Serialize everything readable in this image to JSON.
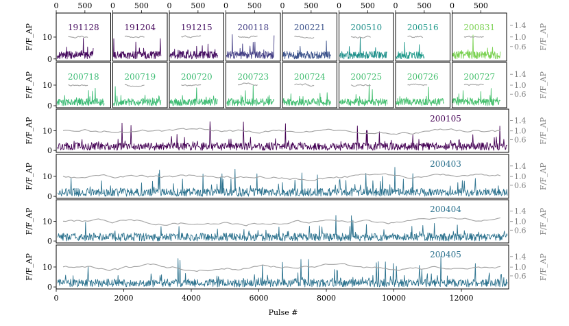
{
  "chart_data": {
    "type": "line",
    "x_axis": {
      "label": "Pulse #",
      "ticks": [
        0,
        2000,
        4000,
        6000,
        8000,
        10000,
        12000
      ],
      "range": [
        0,
        13400
      ]
    },
    "top_axis": {
      "ticks": [
        0,
        500
      ],
      "range": [
        0,
        950
      ]
    },
    "left_axis": {
      "label": "F/F_AP",
      "ticks": [
        0,
        10
      ],
      "range": [
        -1,
        21
      ]
    },
    "right_axis": {
      "label": "F/F_AP",
      "ticks": [
        "1.4",
        "1.0",
        "0.6"
      ],
      "color": "#808080"
    },
    "small_panels": [
      {
        "date": "191128",
        "row": 0,
        "n_pulses": 650,
        "color": "#450a5e"
      },
      {
        "date": "191204",
        "row": 0,
        "n_pulses": 850,
        "color": "#46085c"
      },
      {
        "date": "191215",
        "row": 0,
        "n_pulses": 850,
        "color": "#471164"
      },
      {
        "date": "200118",
        "row": 0,
        "n_pulses": 850,
        "color": "#433e85"
      },
      {
        "date": "200221",
        "row": 0,
        "n_pulses": 850,
        "color": "#3b528b"
      },
      {
        "date": "200510",
        "row": 0,
        "n_pulses": 850,
        "color": "#21918c"
      },
      {
        "date": "200516",
        "row": 0,
        "n_pulses": 500,
        "color": "#1f9a8a"
      },
      {
        "date": "200831",
        "row": 0,
        "n_pulses": 850,
        "color": "#7ad151"
      },
      {
        "date": "200718",
        "row": 1,
        "n_pulses": 850,
        "color": "#3bbb75"
      },
      {
        "date": "200719",
        "row": 1,
        "n_pulses": 850,
        "color": "#3dbc74"
      },
      {
        "date": "200720",
        "row": 1,
        "n_pulses": 850,
        "color": "#3ebc73"
      },
      {
        "date": "200723",
        "row": 1,
        "n_pulses": 850,
        "color": "#40bd72"
      },
      {
        "date": "200724",
        "row": 1,
        "n_pulses": 850,
        "color": "#42be71"
      },
      {
        "date": "200725",
        "row": 1,
        "n_pulses": 850,
        "color": "#44bf70"
      },
      {
        "date": "200726",
        "row": 1,
        "n_pulses": 850,
        "color": "#46c06f"
      },
      {
        "date": "200727",
        "row": 1,
        "n_pulses": 850,
        "color": "#48c16e"
      }
    ],
    "wide_panels": [
      {
        "date": "200105",
        "n_pulses": 13400,
        "color": "#440154"
      },
      {
        "date": "200403",
        "n_pulses": 13400,
        "color": "#2c728e"
      },
      {
        "date": "200404",
        "n_pulses": 13400,
        "color": "#2c728e"
      },
      {
        "date": "200405",
        "n_pulses": 13400,
        "color": "#2c728e"
      }
    ],
    "trend_color": "#a0a0a0",
    "grid": false,
    "legend": "none"
  }
}
